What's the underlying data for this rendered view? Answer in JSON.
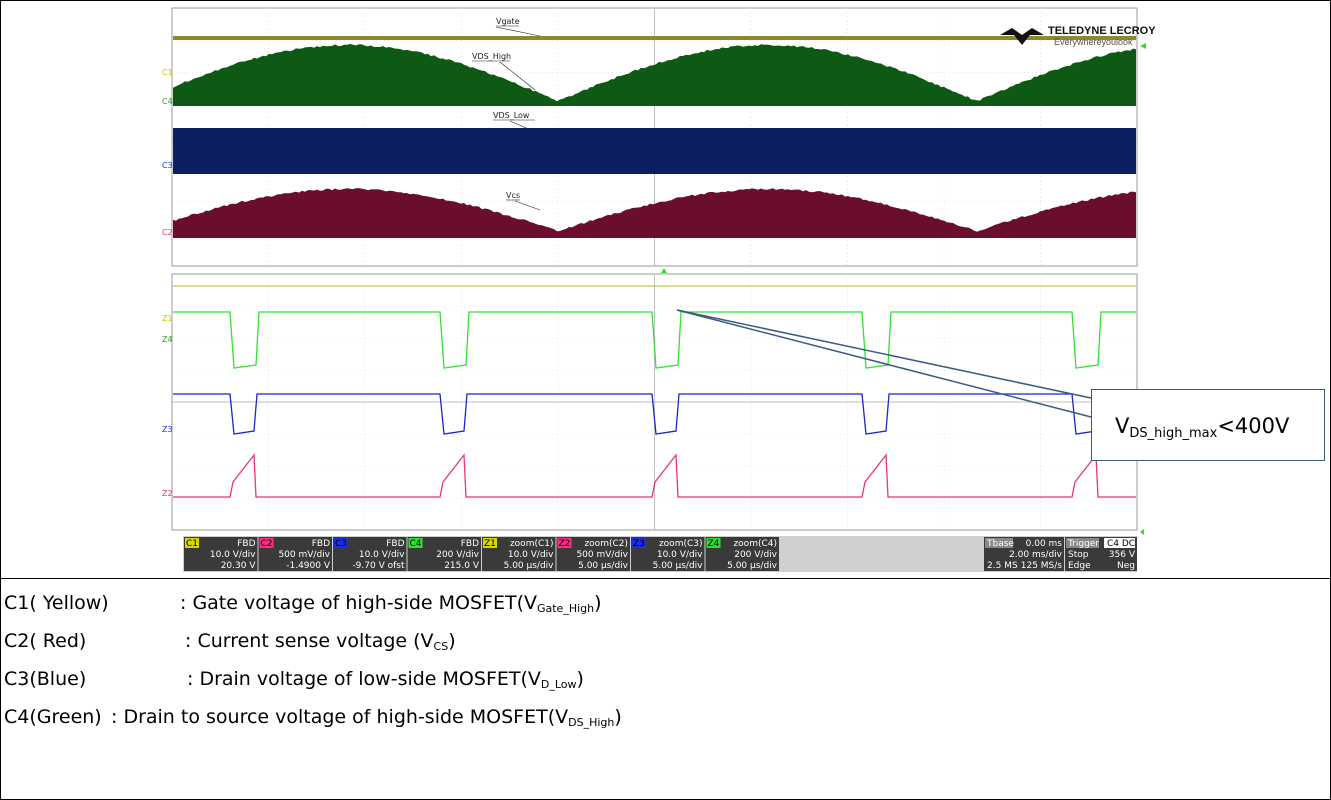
{
  "chart_data": {
    "type": "line",
    "title": "",
    "instrument_brand": "TELEDYNE LECROY",
    "brand_tagline": "Everywhereyoulook",
    "overview": {
      "series": [
        {
          "channel": "C1",
          "label": "Vgate",
          "color": "#8a8a2a",
          "shape": "flat"
        },
        {
          "channel": "C4",
          "label": "VDS_High",
          "color": "#0e5a14",
          "shape": "rectified-sine"
        },
        {
          "channel": "C3",
          "label": "VDS_Low",
          "color": "#0c1f63",
          "shape": "band"
        },
        {
          "channel": "C2",
          "label": "Vcs",
          "color": "#6b0e2e",
          "shape": "rectified-sine"
        }
      ]
    },
    "zoom": {
      "series": [
        {
          "channel": "Z1",
          "color": "#c8c83a",
          "shape": "flat"
        },
        {
          "channel": "Z4",
          "color": "#33e033",
          "shape": "pulse"
        },
        {
          "channel": "Z3",
          "color": "#1a26c8",
          "shape": "pulse"
        },
        {
          "channel": "Z2",
          "color": "#e6337a",
          "shape": "ramp"
        }
      ]
    },
    "channel_boxes": [
      {
        "name": "C1",
        "color": "#d8d800",
        "mode": "FBD",
        "vdiv": "10.0 V/div",
        "offset": "20.30 V"
      },
      {
        "name": "C2",
        "color": "#ff2a8a",
        "mode": "FBD",
        "vdiv": "500 mV/div",
        "offset": "-1.4900 V"
      },
      {
        "name": "C3",
        "color": "#1a2ef0",
        "mode": "FBD",
        "vdiv": "10.0 V/div",
        "offset": "-9.70 V ofst"
      },
      {
        "name": "C4",
        "color": "#2ee02e",
        "mode": "FBD",
        "vdiv": "200 V/div",
        "offset": "215.0 V"
      },
      {
        "name": "Z1",
        "color": "#d8d800",
        "mode": "zoom(C1)",
        "vdiv": "10.0 V/div",
        "offset": "5.00 µs/div"
      },
      {
        "name": "Z2",
        "color": "#ff2a8a",
        "mode": "zoom(C2)",
        "vdiv": "500 mV/div",
        "offset": "5.00 µs/div"
      },
      {
        "name": "Z3",
        "color": "#1a2ef0",
        "mode": "zoom(C3)",
        "vdiv": "10.0 V/div",
        "offset": "5.00 µs/div"
      },
      {
        "name": "Z4",
        "color": "#2ee02e",
        "mode": "zoom(C4)",
        "vdiv": "200 V/div",
        "offset": "5.00 µs/div"
      }
    ],
    "timebase": {
      "label": "Tbase",
      "delay": "0.00 ms",
      "tdiv": "2.00 ms/div",
      "samples": "2.5 MS",
      "rate": "125 MS/s"
    },
    "trigger": {
      "label": "Trigger",
      "source": "C4 DC",
      "mode": "Stop",
      "level": "356 V",
      "type": "Edge",
      "slope": "Neg"
    }
  },
  "annotation": {
    "main": "V",
    "sub": "DS_high_max",
    "tail": "<400V"
  },
  "legend": [
    {
      "label": "C1( Yellow)",
      "desc": ": Gate voltage of high-side MOSFET(V",
      "sub": "Gate_High",
      "end": ")"
    },
    {
      "label": "C2( Red)",
      "desc": ": Current sense voltage (V",
      "sub": "CS",
      "end": ")"
    },
    {
      "label": "C3(Blue)",
      "desc": ": Drain voltage of low-side MOSFET(V",
      "sub": "D_Low",
      "end": ")"
    },
    {
      "label": "C4(Green)",
      "desc": ": Drain to source voltage of high-side MOSFET(V",
      "sub": "DS_High",
      "end": ")"
    }
  ]
}
